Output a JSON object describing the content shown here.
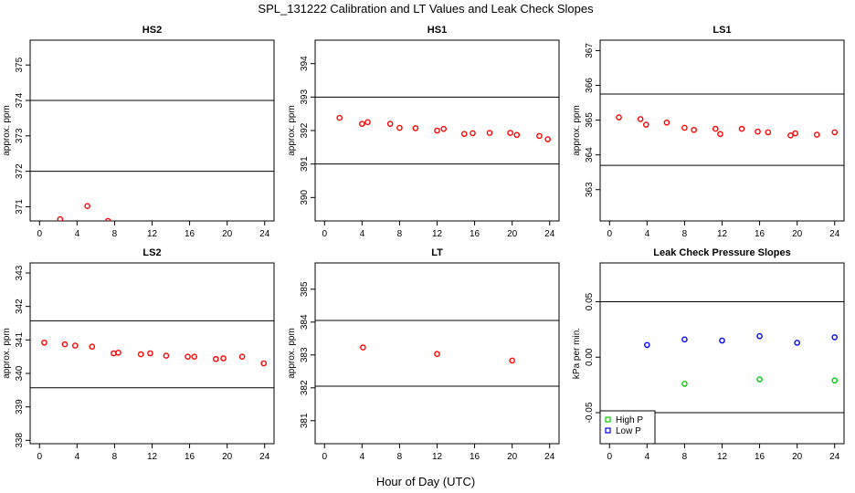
{
  "figure": {
    "title": "SPL_131222  Calibration and LT Values and Leak Check Slopes",
    "common_xlabel": "Hour of Day (UTC)"
  },
  "chart_data": [
    {
      "type": "scatter",
      "title": "HS2",
      "ylabel": "approx. ppm",
      "xlim": [
        -1,
        25
      ],
      "ylim": [
        370.6,
        375.7
      ],
      "xticks": [
        0,
        4,
        8,
        12,
        16,
        20,
        24
      ],
      "yticks": [
        371,
        372,
        373,
        374,
        375
      ],
      "hlines": [
        372,
        374
      ],
      "series": [
        {
          "color": "#ff0000",
          "marker": "circle",
          "x": [
            2.2,
            5.1,
            7.3
          ],
          "y": [
            370.65,
            371.02,
            370.6
          ]
        }
      ]
    },
    {
      "type": "scatter",
      "title": "HS1",
      "ylabel": "approx. ppm",
      "xlim": [
        -1,
        25
      ],
      "ylim": [
        389.3,
        394.7
      ],
      "xticks": [
        0,
        4,
        8,
        12,
        16,
        20,
        24
      ],
      "yticks": [
        390,
        391,
        392,
        393,
        394
      ],
      "hlines": [
        391,
        393
      ],
      "series": [
        {
          "color": "#ff0000",
          "marker": "circle",
          "x": [
            1.6,
            4.0,
            4.6,
            7.0,
            8.0,
            9.7,
            12.0,
            12.7,
            14.9,
            15.8,
            17.6,
            19.8,
            20.5,
            22.9,
            23.8
          ],
          "y": [
            392.38,
            392.2,
            392.25,
            392.2,
            392.08,
            392.07,
            392.0,
            392.05,
            391.9,
            391.92,
            391.93,
            391.93,
            391.87,
            391.84,
            391.74
          ]
        }
      ]
    },
    {
      "type": "scatter",
      "title": "LS1",
      "ylabel": "approx. ppm",
      "xlim": [
        -1,
        25
      ],
      "ylim": [
        362.1,
        367.3
      ],
      "xticks": [
        0,
        4,
        8,
        12,
        16,
        20,
        24
      ],
      "yticks": [
        363,
        364,
        365,
        366,
        367
      ],
      "hlines": [
        363.7,
        365.75
      ],
      "series": [
        {
          "color": "#ff0000",
          "marker": "circle",
          "x": [
            1.0,
            3.3,
            3.9,
            6.1,
            8.0,
            9.0,
            11.3,
            11.8,
            14.1,
            15.8,
            16.9,
            19.3,
            19.8,
            22.1,
            24.0
          ],
          "y": [
            365.08,
            365.03,
            364.87,
            364.93,
            364.78,
            364.72,
            364.75,
            364.6,
            364.75,
            364.67,
            364.65,
            364.56,
            364.62,
            364.58,
            364.65
          ]
        }
      ]
    },
    {
      "type": "scatter",
      "title": "LS2",
      "ylabel": "approx. ppm",
      "xlim": [
        -1,
        25
      ],
      "ylim": [
        337.9,
        343.3
      ],
      "xticks": [
        0,
        4,
        8,
        12,
        16,
        20,
        24
      ],
      "yticks": [
        338,
        339,
        340,
        341,
        342,
        343
      ],
      "hlines": [
        339.57,
        341.57
      ],
      "series": [
        {
          "color": "#ff0000",
          "marker": "circle",
          "x": [
            0.5,
            2.7,
            3.8,
            5.6,
            7.9,
            8.4,
            10.8,
            11.8,
            13.5,
            15.8,
            16.5,
            18.8,
            19.6,
            21.6,
            23.9
          ],
          "y": [
            340.92,
            340.87,
            340.83,
            340.8,
            340.6,
            340.62,
            340.57,
            340.6,
            340.53,
            340.5,
            340.5,
            340.43,
            340.45,
            340.5,
            340.3
          ]
        }
      ]
    },
    {
      "type": "scatter",
      "title": "LT",
      "ylabel": "approx. ppm",
      "xlim": [
        -1,
        25
      ],
      "ylim": [
        380.3,
        385.8
      ],
      "xticks": [
        0,
        4,
        8,
        12,
        16,
        20,
        24
      ],
      "yticks": [
        381,
        382,
        383,
        384,
        385
      ],
      "hlines": [
        382.05,
        384.05
      ],
      "series": [
        {
          "color": "#ff0000",
          "marker": "circle",
          "x": [
            4.1,
            12.0,
            20.0
          ],
          "y": [
            383.23,
            383.03,
            382.83
          ]
        }
      ]
    },
    {
      "type": "scatter",
      "title": "Leak Check Pressure Slopes",
      "ylabel": "kPa per min.",
      "xlim": [
        -1,
        25
      ],
      "ylim": [
        -0.078,
        0.085
      ],
      "xticks": [
        0,
        4,
        8,
        12,
        16,
        20,
        24
      ],
      "yticks": [
        -0.05,
        0.0,
        0.05
      ],
      "ytick_labels": [
        "-0.05",
        "0.00",
        "0.05"
      ],
      "hlines": [
        -0.05,
        0.05
      ],
      "legend": "bottom-left",
      "series": [
        {
          "name": "High P",
          "color": "#00cc00",
          "marker": "circle",
          "x": [
            8.0,
            16.0,
            24.0
          ],
          "y": [
            -0.024,
            -0.02,
            -0.021
          ]
        },
        {
          "name": "Low P",
          "color": "#0000ff",
          "marker": "circle",
          "x": [
            4.0,
            8.0,
            12.0,
            16.0,
            20.0,
            24.0
          ],
          "y": [
            0.011,
            0.016,
            0.015,
            0.019,
            0.013,
            0.018
          ]
        }
      ]
    }
  ]
}
